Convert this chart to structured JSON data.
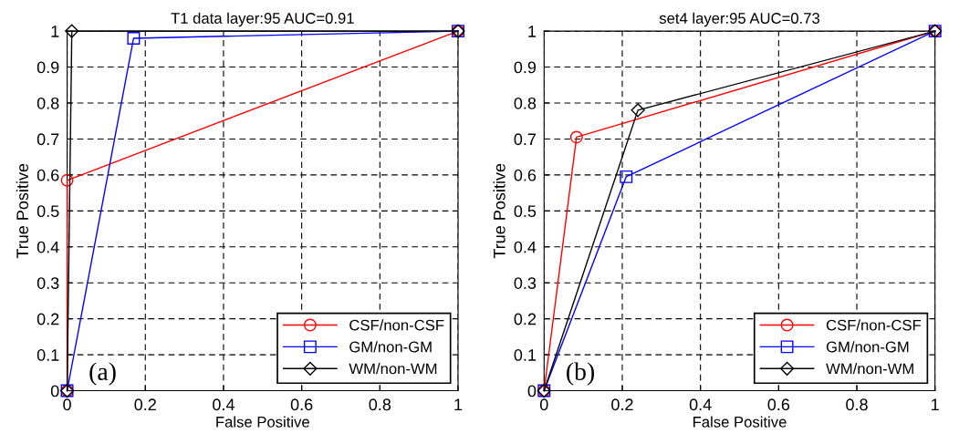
{
  "chart_data": [
    {
      "type": "line",
      "title": "T1 data layer:95 AUC=0.91",
      "xlabel": "False Positive",
      "ylabel": "True Positive",
      "annotations": [
        "(a)"
      ],
      "legend": "bottom right",
      "grid": true,
      "xlim": [
        0,
        1
      ],
      "ylim": [
        0,
        1
      ],
      "xticks": [
        0,
        0.2,
        0.4,
        0.6,
        0.8,
        1
      ],
      "yticks": [
        0,
        0.1,
        0.2,
        0.3,
        0.4,
        0.5,
        0.6,
        0.7,
        0.8,
        0.9,
        1
      ],
      "series": [
        {
          "name": "CSF/non-CSF",
          "color": "#ff0000",
          "marker": "circle",
          "x": [
            0,
            0,
            1
          ],
          "values": [
            0,
            0.585,
            1
          ]
        },
        {
          "name": "GM/non-GM",
          "color": "#0000ff",
          "marker": "square",
          "x": [
            0,
            0.17,
            1
          ],
          "values": [
            0,
            0.98,
            1
          ]
        },
        {
          "name": "WM/non-WM",
          "color": "#000000",
          "marker": "diamond",
          "x": [
            0,
            0.012,
            1
          ],
          "values": [
            0,
            1,
            1
          ]
        }
      ]
    },
    {
      "type": "line",
      "title": "set4 layer:95 AUC=0.73",
      "xlabel": "False Positive",
      "ylabel": "True Positive",
      "annotations": [
        "(b)"
      ],
      "legend": "bottom right",
      "grid": true,
      "xlim": [
        0,
        1
      ],
      "ylim": [
        0,
        1
      ],
      "xticks": [
        0,
        0.2,
        0.4,
        0.6,
        0.8,
        1
      ],
      "yticks": [
        0,
        0.1,
        0.2,
        0.3,
        0.4,
        0.5,
        0.6,
        0.7,
        0.8,
        0.9,
        1
      ],
      "series": [
        {
          "name": "CSF/non-CSF",
          "color": "#ff0000",
          "marker": "circle",
          "x": [
            0,
            0.083,
            1
          ],
          "values": [
            0,
            0.705,
            1
          ]
        },
        {
          "name": "GM/non-GM",
          "color": "#0000ff",
          "marker": "square",
          "x": [
            0,
            0.21,
            1
          ],
          "values": [
            0,
            0.595,
            1
          ]
        },
        {
          "name": "WM/non-WM",
          "color": "#000000",
          "marker": "diamond",
          "x": [
            0,
            0.24,
            1
          ],
          "values": [
            0,
            0.78,
            1
          ]
        }
      ]
    }
  ]
}
